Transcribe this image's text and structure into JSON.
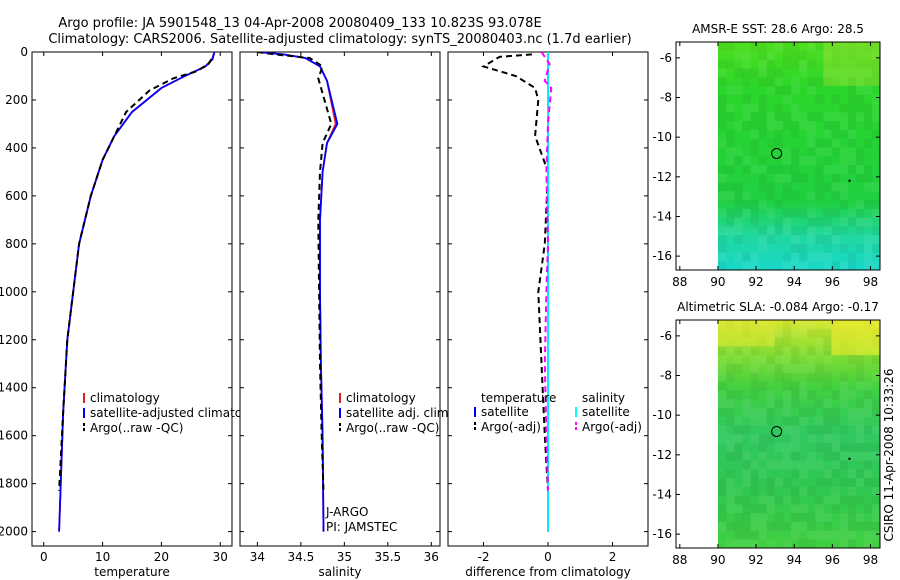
{
  "title": {
    "line1": "Argo profile: JA 5901548_13 04-Apr-2008 20080409_133 10.823S 93.078E",
    "line2": "Climatology: CARS2006. Satellite-adjusted climatology: synTS_20080403.nc (1.7d earlier)"
  },
  "side_label": "CSIRO 11-Apr-2008 10:33:26",
  "colors": {
    "climatology": "#e02020",
    "satellite": "#0000ff",
    "argo": "#000000",
    "salinity_sat": "#00ffff",
    "salinity_argo": "#ff00ff"
  },
  "chart_data": [
    {
      "type": "line",
      "id": "temperature",
      "xlabel": "temperature",
      "ylabel": "",
      "xlim": [
        -2,
        32
      ],
      "ylim": [
        2060,
        0
      ],
      "xticks": [
        0,
        10,
        20,
        30
      ],
      "xtick_labels": [
        "0",
        "10",
        "20",
        "30"
      ],
      "yticks": [
        0,
        200,
        400,
        600,
        800,
        1000,
        1200,
        1400,
        1600,
        1800,
        2000
      ],
      "ytick_labels": [
        "0",
        "200",
        "400",
        "600",
        "800",
        "1000",
        "1200",
        "1400",
        "1600",
        "1800",
        "2000"
      ],
      "series": [
        {
          "name": "climatology",
          "color": "#e02020",
          "dash": false,
          "x": [
            29,
            28.6,
            27.5,
            24,
            20,
            15,
            12,
            10,
            8,
            6,
            5,
            4,
            3.3,
            2.6
          ],
          "y": [
            0,
            30,
            60,
            100,
            150,
            250,
            350,
            450,
            600,
            800,
            1000,
            1200,
            1500,
            2000
          ]
        },
        {
          "name": "satellite-adjusted climatology",
          "color": "#0000ff",
          "dash": false,
          "x": [
            29,
            28.7,
            27.5,
            24,
            20,
            15,
            12,
            10,
            8,
            6,
            5,
            4,
            3.3,
            2.6
          ],
          "y": [
            0,
            30,
            60,
            100,
            150,
            250,
            350,
            450,
            600,
            800,
            1000,
            1200,
            1500,
            2000
          ]
        },
        {
          "name": "Argo(..raw -QC)",
          "color": "#000000",
          "dash": true,
          "x": [
            28.5,
            28,
            26,
            22,
            18,
            14,
            12,
            10,
            8,
            6,
            5,
            4,
            3.3,
            2.6
          ],
          "y": [
            30,
            50,
            80,
            110,
            160,
            250,
            350,
            450,
            600,
            800,
            1000,
            1200,
            1500,
            1830
          ]
        }
      ],
      "legend": [
        "climatology",
        "satellite-adjusted climatology",
        "Argo(..raw -QC)"
      ]
    },
    {
      "type": "line",
      "id": "salinity",
      "xlabel": "salinity",
      "xlim": [
        33.8,
        36.1
      ],
      "ylim": [
        2060,
        0
      ],
      "xticks": [
        34,
        34.5,
        35,
        35.5,
        36
      ],
      "xtick_labels": [
        "34",
        "34.5",
        "35",
        "35.5",
        "36"
      ],
      "series": [
        {
          "name": "climatology",
          "color": "#e02020",
          "dash": false,
          "x": [
            34.0,
            34.3,
            34.55,
            34.72,
            34.8,
            34.9,
            34.8,
            34.75,
            34.72,
            34.72,
            34.73,
            34.75,
            34.76
          ],
          "y": [
            0,
            10,
            25,
            60,
            120,
            300,
            380,
            500,
            700,
            1000,
            1300,
            1600,
            2000
          ]
        },
        {
          "name": "satellite adj. clim.",
          "color": "#0000ff",
          "dash": false,
          "x": [
            34.0,
            34.3,
            34.55,
            34.72,
            34.8,
            34.92,
            34.8,
            34.75,
            34.72,
            34.72,
            34.73,
            34.75,
            34.76
          ],
          "y": [
            0,
            10,
            25,
            60,
            120,
            300,
            380,
            500,
            700,
            1000,
            1300,
            1600,
            2000
          ]
        },
        {
          "name": "Argo(..raw -QC)",
          "color": "#000000",
          "dash": true,
          "x": [
            34.0,
            34.2,
            34.6,
            34.75,
            34.7,
            34.85,
            34.75,
            34.72,
            34.7,
            34.71,
            34.72,
            34.74,
            34.76
          ],
          "y": [
            0,
            10,
            25,
            60,
            110,
            300,
            380,
            500,
            700,
            1000,
            1300,
            1600,
            1830
          ]
        }
      ],
      "legend": [
        "climatology",
        "satellite adj. clim.",
        "Argo(..raw -QC)"
      ],
      "annotation1": "J-ARGO",
      "annotation2": "PI: JAMSTEC"
    },
    {
      "type": "line",
      "id": "difference",
      "xlabel": "difference from climatology",
      "xlim": [
        -3.1,
        3.1
      ],
      "ylim": [
        2060,
        0
      ],
      "xticks": [
        -2,
        0,
        2
      ],
      "xtick_labels": [
        "-2",
        "0",
        "2"
      ],
      "series": [
        {
          "name": "satellite (temperature)",
          "color": "#0000ff",
          "dash": false,
          "x": [
            0,
            0,
            0
          ],
          "y": [
            0,
            1000,
            2000
          ]
        },
        {
          "name": "Argo(-adj) (temperature)",
          "color": "#000000",
          "dash": true,
          "x": [
            -0.5,
            -1.5,
            -2.0,
            -1.0,
            -0.4,
            -0.3,
            -0.4,
            0,
            -0.1,
            -0.3,
            -0.2,
            -0.1,
            0
          ],
          "y": [
            10,
            20,
            60,
            100,
            150,
            200,
            350,
            500,
            800,
            1000,
            1300,
            1600,
            1830
          ]
        },
        {
          "name": "satellite (salinity)",
          "color": "#00ffff",
          "dash": false,
          "x": [
            0,
            0,
            0
          ],
          "y": [
            0,
            1000,
            2000
          ]
        },
        {
          "name": "Argo(-adj) (salinity)",
          "color": "#ff00ff",
          "dash": true,
          "x": [
            -0.2,
            0.05,
            -0.1,
            0.1,
            0,
            -0.05,
            0,
            -0.05,
            -0.1,
            -0.05,
            0
          ],
          "y": [
            0,
            50,
            120,
            150,
            300,
            500,
            800,
            1000,
            1300,
            1600,
            1830
          ]
        }
      ],
      "legend_headers": [
        "temperature",
        "salinity"
      ],
      "legend": [
        "satellite",
        "Argo(-adj)",
        "satellite",
        "Argo(-adj)"
      ]
    },
    {
      "type": "heatmap",
      "id": "sst_map",
      "title": "AMSR-E SST: 28.6  Argo: 28.5",
      "xlim": [
        87.8,
        98.5
      ],
      "ylim": [
        -16.7,
        -5.2
      ],
      "xticks": [
        88,
        90,
        92,
        94,
        96,
        98
      ],
      "xtick_labels": [
        "88",
        "90",
        "92",
        "94",
        "96",
        "98"
      ],
      "yticks": [
        -6,
        -8,
        -10,
        -12,
        -14,
        -16
      ],
      "ytick_labels": [
        "-6",
        "-8",
        "-10",
        "-12",
        "-14",
        "-16"
      ],
      "data_xlim": [
        90,
        98.5
      ],
      "marker": {
        "lon": 93.078,
        "lat": -10.823
      }
    },
    {
      "type": "heatmap",
      "id": "sla_map",
      "title": "Altimetric SLA: -0.084  Argo: -0.17",
      "xlim": [
        87.8,
        98.5
      ],
      "ylim": [
        -16.7,
        -5.2
      ],
      "xticks": [
        88,
        90,
        92,
        94,
        96,
        98
      ],
      "xtick_labels": [
        "88",
        "90",
        "92",
        "94",
        "96",
        "98"
      ],
      "yticks": [
        -6,
        -8,
        -10,
        -12,
        -14,
        -16
      ],
      "ytick_labels": [
        "-6",
        "-8",
        "-10",
        "-12",
        "-14",
        "-16"
      ],
      "data_xlim": [
        90,
        98.5
      ],
      "marker": {
        "lon": 93.078,
        "lat": -10.823
      }
    }
  ]
}
